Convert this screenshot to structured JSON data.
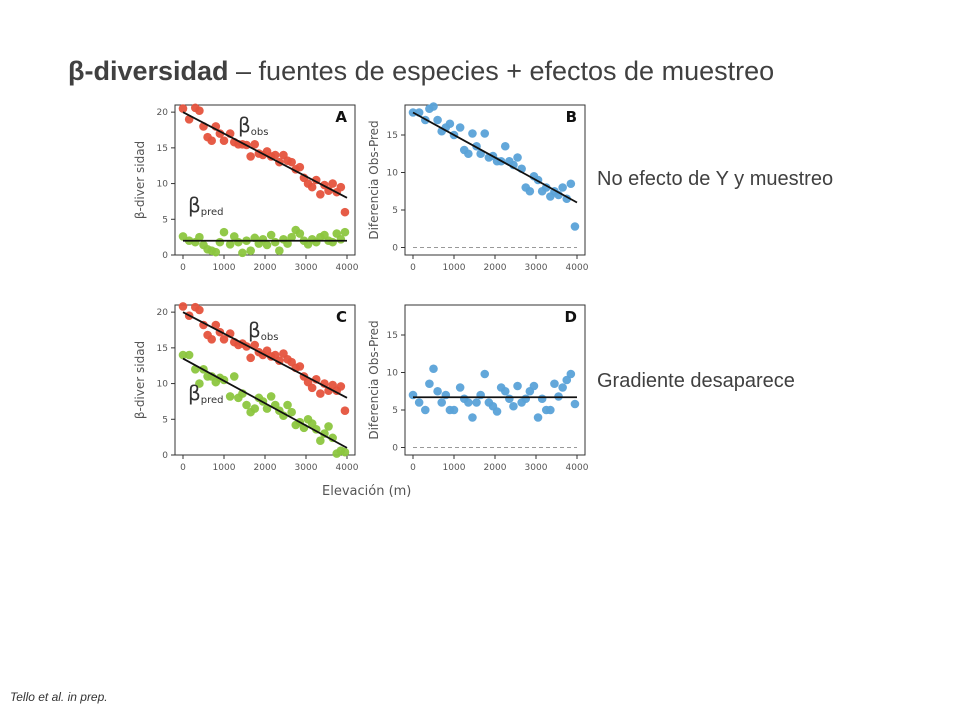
{
  "slide": {
    "title_bold": "β-diversidad",
    "title_rest": " – fuentes de especies + efectos de muestreo",
    "note_top": "No efecto de Y y muestreo",
    "note_bottom": "Gradiente desaparece",
    "citation": "Tello et al. in prep.",
    "shared_xlabel": "Elevación (m)"
  },
  "colors": {
    "obs": "#e5533d",
    "pred": "#8cc63f",
    "diff": "#5aa2d8",
    "fit": "#111111",
    "zero": "#999999"
  },
  "chart_data": [
    {
      "type": "scatter",
      "letter": "A",
      "ylabel": "β-diver sidad",
      "xlim": [
        0,
        4000
      ],
      "ylim": [
        0,
        21
      ],
      "xticks": [
        0,
        1000,
        2000,
        3000,
        4000
      ],
      "yticks": [
        0,
        5,
        10,
        15,
        20
      ],
      "series": [
        {
          "name": "obs",
          "label_main": "β",
          "label_sub": "obs",
          "color": "#e5533d",
          "fit": [
            [
              0,
              20
            ],
            [
              4000,
              8
            ]
          ],
          "x": [
            0,
            150,
            300,
            400,
            500,
            600,
            700,
            800,
            900,
            1000,
            1150,
            1250,
            1350,
            1450,
            1550,
            1650,
            1750,
            1850,
            1950,
            2050,
            2150,
            2250,
            2350,
            2450,
            2550,
            2650,
            2750,
            2850,
            2950,
            3050,
            3150,
            3250,
            3350,
            3450,
            3550,
            3650,
            3750,
            3850,
            3950
          ],
          "y": [
            20.5,
            19,
            20.6,
            20.2,
            18,
            16.5,
            16,
            18,
            17,
            16,
            17,
            15.8,
            15.5,
            15.5,
            15.4,
            13.8,
            15.5,
            14.2,
            14,
            14.5,
            13.8,
            14,
            13,
            14,
            13.2,
            13,
            12,
            12.3,
            10.8,
            10,
            9.5,
            10.5,
            8.5,
            9.8,
            9,
            10,
            8.8,
            9.5,
            6
          ]
        },
        {
          "name": "pred",
          "label_main": "β",
          "label_sub": "pred",
          "color": "#8cc63f",
          "fit": [
            [
              0,
              2
            ],
            [
              4000,
              2
            ]
          ],
          "x": [
            0,
            150,
            300,
            400,
            500,
            600,
            700,
            800,
            900,
            1000,
            1150,
            1250,
            1350,
            1450,
            1550,
            1650,
            1750,
            1850,
            1950,
            2050,
            2150,
            2250,
            2350,
            2450,
            2550,
            2650,
            2750,
            2850,
            2950,
            3050,
            3150,
            3250,
            3350,
            3450,
            3550,
            3650,
            3750,
            3850,
            3950
          ],
          "y": [
            2.6,
            2,
            1.8,
            2.5,
            1.4,
            0.8,
            0.6,
            0.4,
            1.8,
            3.2,
            1.5,
            2.6,
            1.8,
            0.3,
            2,
            0.6,
            2.4,
            1.6,
            2.2,
            1.4,
            2.8,
            1.8,
            0.6,
            2.2,
            1.6,
            2.5,
            3.5,
            3,
            2,
            1.5,
            2.2,
            1.8,
            2.5,
            2.8,
            2,
            1.8,
            3,
            2.2,
            3.2
          ]
        }
      ]
    },
    {
      "type": "scatter",
      "letter": "B",
      "ylabel": "Diferencia Obs-Pred",
      "xlim": [
        0,
        4000
      ],
      "ylim": [
        -1,
        19
      ],
      "xticks": [
        0,
        1000,
        2000,
        3000,
        4000
      ],
      "yticks": [
        0,
        5,
        10,
        15
      ],
      "zero_line": true,
      "series": [
        {
          "name": "diff",
          "color": "#5aa2d8",
          "fit": [
            [
              0,
              18
            ],
            [
              4000,
              6
            ]
          ],
          "x": [
            0,
            150,
            300,
            400,
            500,
            600,
            700,
            800,
            900,
            1000,
            1150,
            1250,
            1350,
            1450,
            1550,
            1650,
            1750,
            1850,
            1950,
            2050,
            2150,
            2250,
            2350,
            2450,
            2550,
            2650,
            2750,
            2850,
            2950,
            3050,
            3150,
            3250,
            3350,
            3450,
            3550,
            3650,
            3750,
            3850,
            3950
          ],
          "y": [
            18,
            18,
            17,
            18.5,
            18.8,
            17,
            15.5,
            16,
            16.5,
            15,
            16,
            13,
            12.5,
            15.2,
            13.5,
            12.5,
            15.2,
            12,
            12.2,
            11.5,
            11.5,
            13.5,
            11.5,
            11,
            12,
            10.5,
            8,
            7.5,
            9.5,
            9,
            7.5,
            8,
            6.8,
            7.5,
            7,
            8,
            6.5,
            8.5,
            2.8
          ]
        }
      ]
    },
    {
      "type": "scatter",
      "letter": "C",
      "ylabel": "β-diver sidad",
      "xlim": [
        0,
        4000
      ],
      "ylim": [
        0,
        21
      ],
      "xticks": [
        0,
        1000,
        2000,
        3000,
        4000
      ],
      "yticks": [
        0,
        5,
        10,
        15,
        20
      ],
      "series": [
        {
          "name": "obs",
          "label_main": "β",
          "label_sub": "obs",
          "color": "#e5533d",
          "fit": [
            [
              0,
              20
            ],
            [
              4000,
              8
            ]
          ],
          "x": [
            0,
            150,
            300,
            400,
            500,
            600,
            700,
            800,
            900,
            1000,
            1150,
            1250,
            1350,
            1450,
            1550,
            1650,
            1750,
            1850,
            1950,
            2050,
            2150,
            2250,
            2350,
            2450,
            2550,
            2650,
            2750,
            2850,
            2950,
            3050,
            3150,
            3250,
            3350,
            3450,
            3550,
            3650,
            3750,
            3850,
            3950
          ],
          "y": [
            20.8,
            19.5,
            20.7,
            20.3,
            18.2,
            16.8,
            16.2,
            18.2,
            17.2,
            16.2,
            17,
            15.8,
            15.4,
            15.6,
            15.2,
            13.6,
            15.4,
            14.4,
            14,
            14.6,
            13.8,
            14,
            13.2,
            14.2,
            13.4,
            13,
            12.2,
            12.4,
            11,
            10.2,
            9.4,
            10.6,
            8.6,
            10,
            9,
            9.8,
            9,
            9.6,
            6.2
          ]
        },
        {
          "name": "pred",
          "label_main": "β",
          "label_sub": "pred",
          "color": "#8cc63f",
          "fit": [
            [
              0,
              13.5
            ],
            [
              4000,
              1
            ]
          ],
          "x": [
            0,
            150,
            300,
            400,
            500,
            600,
            700,
            800,
            900,
            1000,
            1150,
            1250,
            1350,
            1450,
            1550,
            1650,
            1750,
            1850,
            1950,
            2050,
            2150,
            2250,
            2350,
            2450,
            2550,
            2650,
            2750,
            2850,
            2950,
            3050,
            3150,
            3250,
            3350,
            3450,
            3550,
            3650,
            3750,
            3850,
            3950
          ],
          "y": [
            14,
            14,
            12,
            10,
            12,
            11,
            11,
            10.2,
            10.8,
            10.5,
            8.2,
            11,
            8,
            8.6,
            7,
            6,
            6.5,
            8,
            7.5,
            6.5,
            8.2,
            7,
            6.2,
            5.5,
            7,
            6,
            4.2,
            4.6,
            3.8,
            5,
            4.4,
            3.6,
            2,
            3,
            4,
            2.4,
            0.2,
            0.6,
            0.4
          ]
        }
      ]
    },
    {
      "type": "scatter",
      "letter": "D",
      "ylabel": "Diferencia Obs-Pred",
      "xlim": [
        0,
        4000
      ],
      "ylim": [
        -1,
        19
      ],
      "xticks": [
        0,
        1000,
        2000,
        3000,
        4000
      ],
      "yticks": [
        0,
        5,
        10,
        15
      ],
      "zero_line": true,
      "series": [
        {
          "name": "diff",
          "color": "#5aa2d8",
          "fit": [
            [
              0,
              6.7
            ],
            [
              4000,
              6.7
            ]
          ],
          "x": [
            0,
            150,
            300,
            400,
            500,
            600,
            700,
            800,
            900,
            1000,
            1150,
            1250,
            1350,
            1450,
            1550,
            1650,
            1750,
            1850,
            1950,
            2050,
            2150,
            2250,
            2350,
            2450,
            2550,
            2650,
            2750,
            2850,
            2950,
            3050,
            3150,
            3250,
            3350,
            3450,
            3550,
            3650,
            3750,
            3850,
            3950
          ],
          "y": [
            7,
            6,
            5,
            8.5,
            10.5,
            7.5,
            6,
            7,
            5,
            5,
            8,
            6.5,
            6,
            4,
            6,
            7,
            9.8,
            6,
            5.5,
            4.8,
            8,
            7.5,
            6.5,
            5.5,
            8.2,
            6,
            6.5,
            7.5,
            8.2,
            4,
            6.5,
            5,
            5,
            8.5,
            6.8,
            8,
            9,
            9.8,
            5.8
          ]
        }
      ]
    }
  ]
}
